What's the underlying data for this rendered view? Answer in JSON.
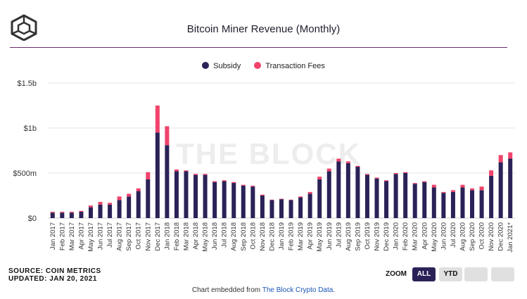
{
  "header": {
    "title": "Bitcoin Miner Revenue (Monthly)"
  },
  "watermark": "THE BLOCK",
  "legend": [
    {
      "label": "Subsidy",
      "color": "#2a2257"
    },
    {
      "label": "Transaction Fees",
      "color": "#f0436b"
    }
  ],
  "footer": {
    "source": "SOURCE: COIN METRICS",
    "updated": "UPDATED: JAN 20, 2021",
    "embed_prefix": "Chart embedded from ",
    "embed_link": "The Block Crypto Data",
    "embed_suffix": "."
  },
  "zoom": {
    "label": "ZOOM",
    "all": "ALL",
    "ytd": "YTD"
  },
  "chart_data": {
    "type": "bar",
    "stacked": true,
    "title": "Bitcoin Miner Revenue (Monthly)",
    "ylim": [
      0,
      1.5
    ],
    "yticks": [
      {
        "value": 0,
        "label": "$0"
      },
      {
        "value": 0.5,
        "label": "$500m"
      },
      {
        "value": 1.0,
        "label": "$1b"
      },
      {
        "value": 1.5,
        "label": "$1.5b"
      }
    ],
    "categories": [
      "Jan 2017",
      "Feb 2017",
      "Mar 2017",
      "Apr 2017",
      "May 2017",
      "Jun 2017",
      "Jul 2017",
      "Aug 2017",
      "Sep 2017",
      "Oct 2017",
      "Nov 2017",
      "Dec 2017",
      "Jan 2018",
      "Feb 2018",
      "Mar 2018",
      "Apr 2018",
      "May 2018",
      "Jun 2018",
      "Jul 2018",
      "Aug 2018",
      "Sep 2018",
      "Oct 2018",
      "Nov 2018",
      "Dec 2018",
      "Jan 2019",
      "Feb 2019",
      "Mar 2019",
      "Apr 2019",
      "May 2019",
      "Jun 2019",
      "Jul 2019",
      "Aug 2019",
      "Sep 2019",
      "Oct 2019",
      "Nov 2019",
      "Dec 2019",
      "Jan 2020",
      "Feb 2020",
      "Mar 2020",
      "Apr 2020",
      "May 2020",
      "Jun 2020",
      "Jul 2020",
      "Aug 2020",
      "Sep 2020",
      "Oct 2020",
      "Nov 2020",
      "Dec 2020",
      "Jan 2021*"
    ],
    "tick_labels": [
      "Jan 2017",
      "Feb 2017",
      "Mar 2017",
      "Apr 2017",
      "May 2017",
      "Jun 2017",
      "Jul 2017",
      "Aug 2017",
      "Sep 2017",
      "Oct 2017",
      "Nov 2017",
      "Dec 2017",
      "Jan 2018",
      "Feb 2018",
      "Mar 2018",
      "Apr 2018",
      "May 2018",
      "Jun 2018",
      "Jul 2018",
      "Aug 2018",
      "Sep 2018",
      "Oct 2018",
      "Nov 2018",
      "Dec 2018",
      "Jan 2019",
      "Feb 2019",
      "Mar 2019",
      "Apr 2019",
      "May 2019",
      "Jun 2019",
      "Jul 2019",
      "Aug 2019",
      "Sep 2019",
      "Oct 2019",
      "Nov 2019",
      "Dec 2019",
      "Jan 2020",
      "Feb 2020",
      "Mar 2020",
      "Apr 2020",
      "May 2020",
      "Jun 2020",
      "Jul 2020",
      "Aug 2020",
      "Sep 2020",
      "Oct 2020",
      "Nov 2020",
      "Dec 2020",
      "Jan 2021*"
    ],
    "series": [
      {
        "name": "Subsidy",
        "values": [
          0.06,
          0.06,
          0.06,
          0.07,
          0.12,
          0.15,
          0.15,
          0.2,
          0.24,
          0.3,
          0.43,
          0.95,
          0.81,
          0.52,
          0.52,
          0.48,
          0.48,
          0.4,
          0.41,
          0.39,
          0.36,
          0.35,
          0.25,
          0.2,
          0.21,
          0.2,
          0.23,
          0.27,
          0.43,
          0.52,
          0.63,
          0.61,
          0.57,
          0.48,
          0.44,
          0.41,
          0.49,
          0.5,
          0.38,
          0.4,
          0.34,
          0.28,
          0.29,
          0.34,
          0.31,
          0.31,
          0.47,
          0.62,
          0.66
        ]
      },
      {
        "name": "Transaction Fees",
        "values": [
          0.01,
          0.01,
          0.01,
          0.01,
          0.02,
          0.03,
          0.02,
          0.04,
          0.03,
          0.03,
          0.08,
          0.3,
          0.21,
          0.02,
          0.01,
          0.01,
          0.01,
          0.01,
          0.01,
          0.01,
          0.01,
          0.01,
          0.01,
          0.005,
          0.005,
          0.005,
          0.01,
          0.02,
          0.03,
          0.03,
          0.03,
          0.02,
          0.01,
          0.01,
          0.01,
          0.01,
          0.01,
          0.01,
          0.01,
          0.01,
          0.03,
          0.01,
          0.02,
          0.03,
          0.02,
          0.04,
          0.06,
          0.08,
          0.07
        ]
      }
    ]
  }
}
